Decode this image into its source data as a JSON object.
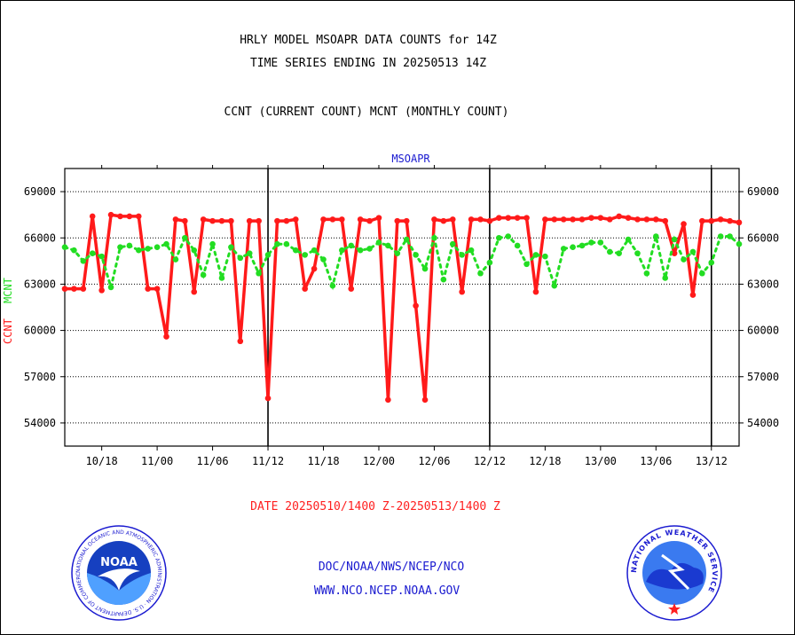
{
  "header": {
    "title_line1": "HRLY MODEL MSOAPR DATA COUNTS for 14Z",
    "title_line2": "TIME SERIES ENDING IN 20250513 14Z",
    "subtitle": "CCNT (CURRENT COUNT) MCNT (MONTHLY COUNT)"
  },
  "footer": {
    "date_range": "DATE 20250510/1400 Z-20250513/1400 Z",
    "link1": "DOC/NOAA/NWS/NCEP/NCO",
    "link2": "WWW.NCO.NCEP.NOAA.GOV"
  },
  "logos": {
    "noaa_text": "NOAA",
    "noaa_ring_text": "NATIONAL OCEANIC AND ATMOSPHERIC ADMINISTRATION · U.S. DEPARTMENT OF COMMERCE",
    "nws_ring_text": "NATIONAL WEATHER SERVICE"
  },
  "colors": {
    "ccnt": "#ff1a1a",
    "mcnt": "#22dd22",
    "label_blue": "#1a1ad0",
    "date_red": "#ff2020"
  },
  "chart_data": {
    "type": "line",
    "title": "MSOAPR",
    "ylabel_ccnt": "CCNT",
    "ylabel_mcnt": "MCNT",
    "ylim": [
      52500,
      70500
    ],
    "yticks": [
      54000,
      57000,
      60000,
      63000,
      66000,
      69000
    ],
    "ytick_labels": [
      "54000",
      "57000",
      "60000",
      "63000",
      "66000",
      "69000"
    ],
    "xlim": [
      0,
      73
    ],
    "xticks": [
      4,
      10,
      16,
      22,
      28,
      34,
      40,
      46,
      52,
      58,
      64,
      70
    ],
    "xtick_labels": [
      "10/18",
      "11/00",
      "11/06",
      "11/12",
      "11/18",
      "12/00",
      "12/06",
      "12/12",
      "12/18",
      "13/00",
      "13/06",
      "13/12"
    ],
    "day_boundaries": [
      22,
      46,
      70
    ],
    "grid": true,
    "series": [
      {
        "name": "CCNT",
        "color": "#ff1a1a",
        "values": [
          62700,
          62700,
          62700,
          67400,
          62600,
          67500,
          67400,
          67400,
          67400,
          62700,
          62700,
          59600,
          67200,
          67100,
          62500,
          67200,
          67100,
          67100,
          67100,
          59300,
          67100,
          67100,
          55600,
          67100,
          67100,
          67200,
          62700,
          64000,
          67200,
          67200,
          67200,
          62700,
          67200,
          67100,
          67300,
          55500,
          67100,
          67100,
          61600,
          55500,
          67200,
          67100,
          67200,
          62500,
          67200,
          67200,
          67100,
          67300,
          67300,
          67300,
          67300,
          62500,
          67200,
          67200,
          67200,
          67200,
          67200,
          67300,
          67300,
          67200,
          67400,
          67300,
          67200,
          67200,
          67200,
          67100,
          65000,
          66900,
          62300,
          67100,
          67100,
          67200,
          67100,
          67000
        ]
      },
      {
        "name": "MCNT",
        "color": "#22dd22",
        "values": [
          65400,
          65200,
          64500,
          65000,
          64800,
          62800,
          65400,
          65500,
          65200,
          65300,
          65400,
          65600,
          64600,
          66000,
          65200,
          63600,
          65600,
          63400,
          65400,
          64700,
          65000,
          63700,
          64900,
          65600,
          65600,
          65200,
          64900,
          65200,
          64600,
          62900,
          65200,
          65500,
          65200,
          65300,
          65700,
          65500,
          65000,
          65900,
          64900,
          64000,
          66000,
          63300,
          65600,
          64900,
          65200,
          63700,
          64400,
          66000,
          66100,
          65500,
          64300,
          64900,
          64800,
          62900,
          65300,
          65400,
          65500,
          65700,
          65700,
          65100,
          65000,
          65900,
          65000,
          63700,
          66100,
          63400,
          65900,
          64600,
          65100,
          63700,
          64400,
          66100,
          66100,
          65600
        ]
      }
    ]
  }
}
